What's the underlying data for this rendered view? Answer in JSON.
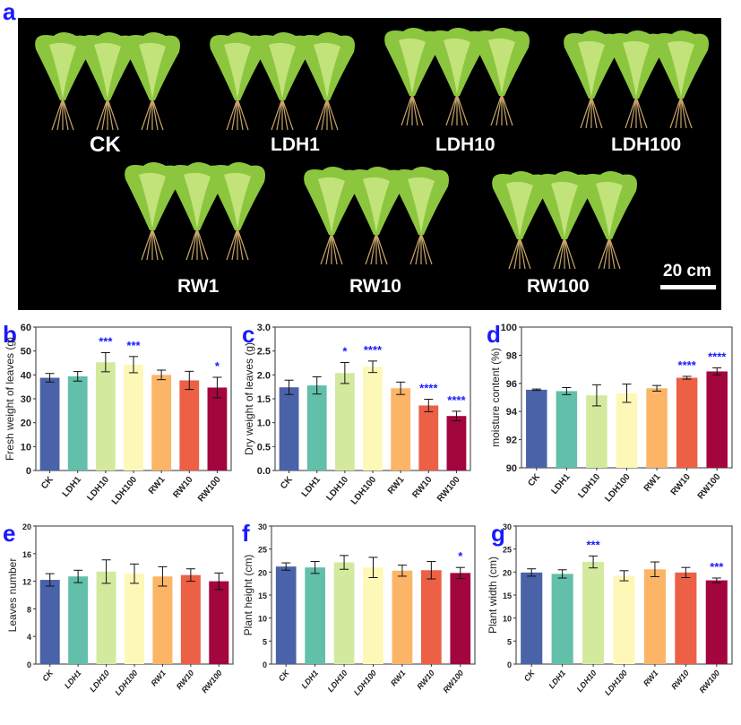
{
  "panel_labels": [
    "a",
    "b",
    "c",
    "d",
    "e",
    "f",
    "g"
  ],
  "photo": {
    "treatments": [
      "CK",
      "LDH1",
      "LDH10",
      "LDH100",
      "RW1",
      "RW10",
      "RW100"
    ],
    "scale_bar": "20 cm"
  },
  "colors": [
    "#4a62a8",
    "#62bfa9",
    "#d3ea9e",
    "#fdf8b8",
    "#fcb566",
    "#ec6046",
    "#a3053f"
  ],
  "significance_color": "#1a1aff",
  "chart_data": [
    {
      "panel": "b",
      "type": "bar",
      "categories": [
        "CK",
        "LDH1",
        "LDH10",
        "LDH100",
        "RW1",
        "RW10",
        "RW100"
      ],
      "values": [
        38.8,
        39.4,
        45.3,
        44.3,
        40.0,
        37.7,
        34.7
      ],
      "error": [
        1.8,
        2.0,
        4.0,
        3.4,
        2.0,
        3.8,
        4.3
      ],
      "significance": [
        "",
        "",
        "***",
        "***",
        "",
        "",
        "*"
      ],
      "xlabel": "",
      "ylabel": "Fresh weight of leaves (g)",
      "ylim": [
        0,
        60
      ],
      "yticks": [
        "0",
        "10",
        "20",
        "30",
        "40",
        "50",
        "60"
      ],
      "italic_ticks": false
    },
    {
      "panel": "c",
      "type": "bar",
      "categories": [
        "CK",
        "LDH1",
        "LDH10",
        "LDH100",
        "RW1",
        "RW10",
        "RW100"
      ],
      "values": [
        1.74,
        1.78,
        2.04,
        2.17,
        1.72,
        1.36,
        1.14
      ],
      "error": [
        0.15,
        0.18,
        0.22,
        0.12,
        0.13,
        0.13,
        0.1
      ],
      "significance": [
        "",
        "",
        "*",
        "****",
        "",
        "****",
        "****"
      ],
      "xlabel": "",
      "ylabel": "Dry weight of leaves (g)",
      "ylim": [
        0,
        3
      ],
      "yticks": [
        "0.0",
        "0.5",
        "1.0",
        "1.5",
        "2.0",
        "2.5",
        "3.0"
      ],
      "italic_ticks": false
    },
    {
      "panel": "d",
      "type": "bar",
      "categories": [
        "CK",
        "LDH1",
        "LDH10",
        "LDH100",
        "RW1",
        "RW10",
        "RW100"
      ],
      "values": [
        95.55,
        95.45,
        95.15,
        95.3,
        95.65,
        96.4,
        96.85
      ],
      "error": [
        0.05,
        0.25,
        0.75,
        0.65,
        0.2,
        0.1,
        0.25
      ],
      "significance": [
        "",
        "",
        "",
        "",
        "",
        "****",
        "****"
      ],
      "xlabel": "",
      "ylabel": "moisture content (%)",
      "ylim": [
        90,
        100
      ],
      "yticks": [
        "90",
        "92",
        "94",
        "96",
        "98",
        "100"
      ],
      "italic_ticks": false
    },
    {
      "panel": "e",
      "type": "bar",
      "categories": [
        "CK",
        "LDH1",
        "LDH10",
        "LDH100",
        "RW1",
        "RW10",
        "RW100"
      ],
      "values": [
        12.2,
        12.7,
        13.4,
        13.1,
        12.7,
        12.9,
        12.0
      ],
      "error": [
        0.9,
        0.9,
        1.7,
        1.4,
        1.4,
        0.9,
        1.2
      ],
      "significance": [
        "",
        "",
        "",
        "",
        "",
        "",
        ""
      ],
      "xlabel": "",
      "ylabel": "Leaves number",
      "ylim": [
        0,
        20
      ],
      "yticks": [
        "0",
        "4",
        "8",
        "12",
        "16",
        "20"
      ],
      "italic_ticks": true
    },
    {
      "panel": "f",
      "type": "bar",
      "categories": [
        "CK",
        "LDH1",
        "LDH10",
        "LDH100",
        "RW1",
        "RW10",
        "RW100"
      ],
      "values": [
        21.2,
        21.0,
        22.1,
        21.0,
        20.3,
        20.4,
        19.8
      ],
      "error": [
        0.8,
        1.3,
        1.5,
        2.2,
        1.2,
        1.9,
        1.2
      ],
      "significance": [
        "",
        "",
        "",
        "",
        "",
        "",
        "*"
      ],
      "xlabel": "",
      "ylabel": "Plant height (cm)",
      "ylim": [
        0,
        30
      ],
      "yticks": [
        "0",
        "5",
        "10",
        "15",
        "20",
        "25",
        "30"
      ],
      "italic_ticks": true
    },
    {
      "panel": "g",
      "type": "bar",
      "categories": [
        "CK",
        "LDH1",
        "LDH10",
        "LDH100",
        "RW1",
        "RW10",
        "RW100"
      ],
      "values": [
        19.9,
        19.6,
        22.2,
        19.2,
        20.6,
        19.9,
        18.2
      ],
      "error": [
        0.8,
        0.9,
        1.3,
        1.1,
        1.6,
        1.1,
        0.5
      ],
      "significance": [
        "",
        "",
        "***",
        "",
        "",
        "",
        "***"
      ],
      "xlabel": "",
      "ylabel": "Plant width (cm)",
      "ylim": [
        0,
        30
      ],
      "yticks": [
        "0",
        "5",
        "10",
        "15",
        "20",
        "25",
        "30"
      ],
      "italic_ticks": true
    }
  ]
}
